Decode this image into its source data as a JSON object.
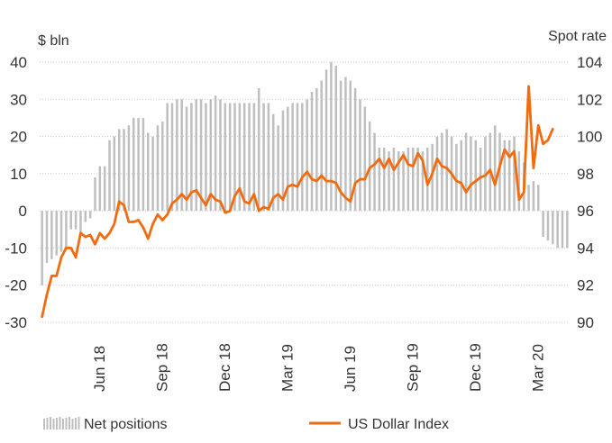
{
  "chart_data": {
    "type": "bar+line",
    "left_axis_unit": "$ bln",
    "right_axis_unit": "Spot rate",
    "left_ticks": [
      40,
      30,
      20,
      10,
      0,
      -10,
      -20,
      -30
    ],
    "right_ticks": [
      104,
      102,
      100,
      98,
      96,
      94,
      92,
      90
    ],
    "ylim_left": [
      -30,
      40
    ],
    "ylim_right": [
      90,
      104
    ],
    "x_ticks": [
      {
        "label": "Jun 18",
        "index": 12
      },
      {
        "label": "Sep 18",
        "index": 25
      },
      {
        "label": "Dec 18",
        "index": 38
      },
      {
        "label": "Mar 19",
        "index": 51
      },
      {
        "label": "Jun 19",
        "index": 64
      },
      {
        "label": "Sep 19",
        "index": 77
      },
      {
        "label": "Dec 19",
        "index": 90
      },
      {
        "label": "Mar 20",
        "index": 103
      }
    ],
    "grid": "horizontal dotted",
    "legend_position": "bottom",
    "series": [
      {
        "name": "Net positions",
        "type": "bar",
        "color": "#bfbfbf",
        "values": [
          -20,
          -14,
          -13,
          -12,
          -11,
          -10,
          -5,
          -5,
          -6,
          -3,
          -2,
          9,
          12,
          12,
          19,
          20,
          22,
          22,
          23,
          25,
          25,
          25,
          21,
          20,
          23,
          24,
          29,
          29,
          30,
          30,
          28,
          29,
          30,
          30,
          29,
          30,
          31,
          30,
          29,
          29,
          29,
          29,
          29,
          29,
          29,
          33,
          29,
          29,
          26,
          23,
          27,
          28,
          29,
          29,
          29,
          30,
          32,
          33,
          35,
          38,
          40,
          39,
          35,
          36,
          35,
          33,
          30,
          28,
          24,
          21,
          17,
          17,
          16,
          17,
          16,
          16,
          17,
          17,
          17,
          16,
          17,
          18,
          20,
          21,
          22,
          20,
          18,
          19,
          21,
          20,
          19,
          17,
          20,
          21,
          23,
          21,
          19,
          19,
          20,
          16,
          13,
          7,
          8,
          7,
          -7,
          -8,
          -9,
          -10,
          -10,
          -10
        ]
      },
      {
        "name": "US Dollar Index",
        "type": "line",
        "color": "#f26b0f",
        "values": [
          90.3,
          91.5,
          92.5,
          92.5,
          93.5,
          94.0,
          94.0,
          93.5,
          94.8,
          94.6,
          94.7,
          94.2,
          94.8,
          94.5,
          94.8,
          95.3,
          96.5,
          96.3,
          95.4,
          95.4,
          95.5,
          95.1,
          94.5,
          95.3,
          95.8,
          95.5,
          95.8,
          96.4,
          96.6,
          96.9,
          96.6,
          97.0,
          97.1,
          96.7,
          96.3,
          96.9,
          96.6,
          96.5,
          95.9,
          96.0,
          96.8,
          97.2,
          96.5,
          96.4,
          96.9,
          96.0,
          96.2,
          96.1,
          96.7,
          96.9,
          96.6,
          97.3,
          97.4,
          97.3,
          97.8,
          98.1,
          97.7,
          97.6,
          97.9,
          97.6,
          97.6,
          97.5,
          97.0,
          96.7,
          96.5,
          97.5,
          97.7,
          97.7,
          98.3,
          98.5,
          98.8,
          98.3,
          98.8,
          98.2,
          98.6,
          99.0,
          98.5,
          98.4,
          99.1,
          98.7,
          97.4,
          98.0,
          98.8,
          98.4,
          98.3,
          98.0,
          97.6,
          97.5,
          97.0,
          97.4,
          97.6,
          97.8,
          97.9,
          98.2,
          97.4,
          98.4,
          99.3,
          98.9,
          99.2,
          96.6,
          97.0,
          102.7,
          98.3,
          100.6,
          99.6,
          99.8,
          100.4
        ]
      }
    ]
  }
}
